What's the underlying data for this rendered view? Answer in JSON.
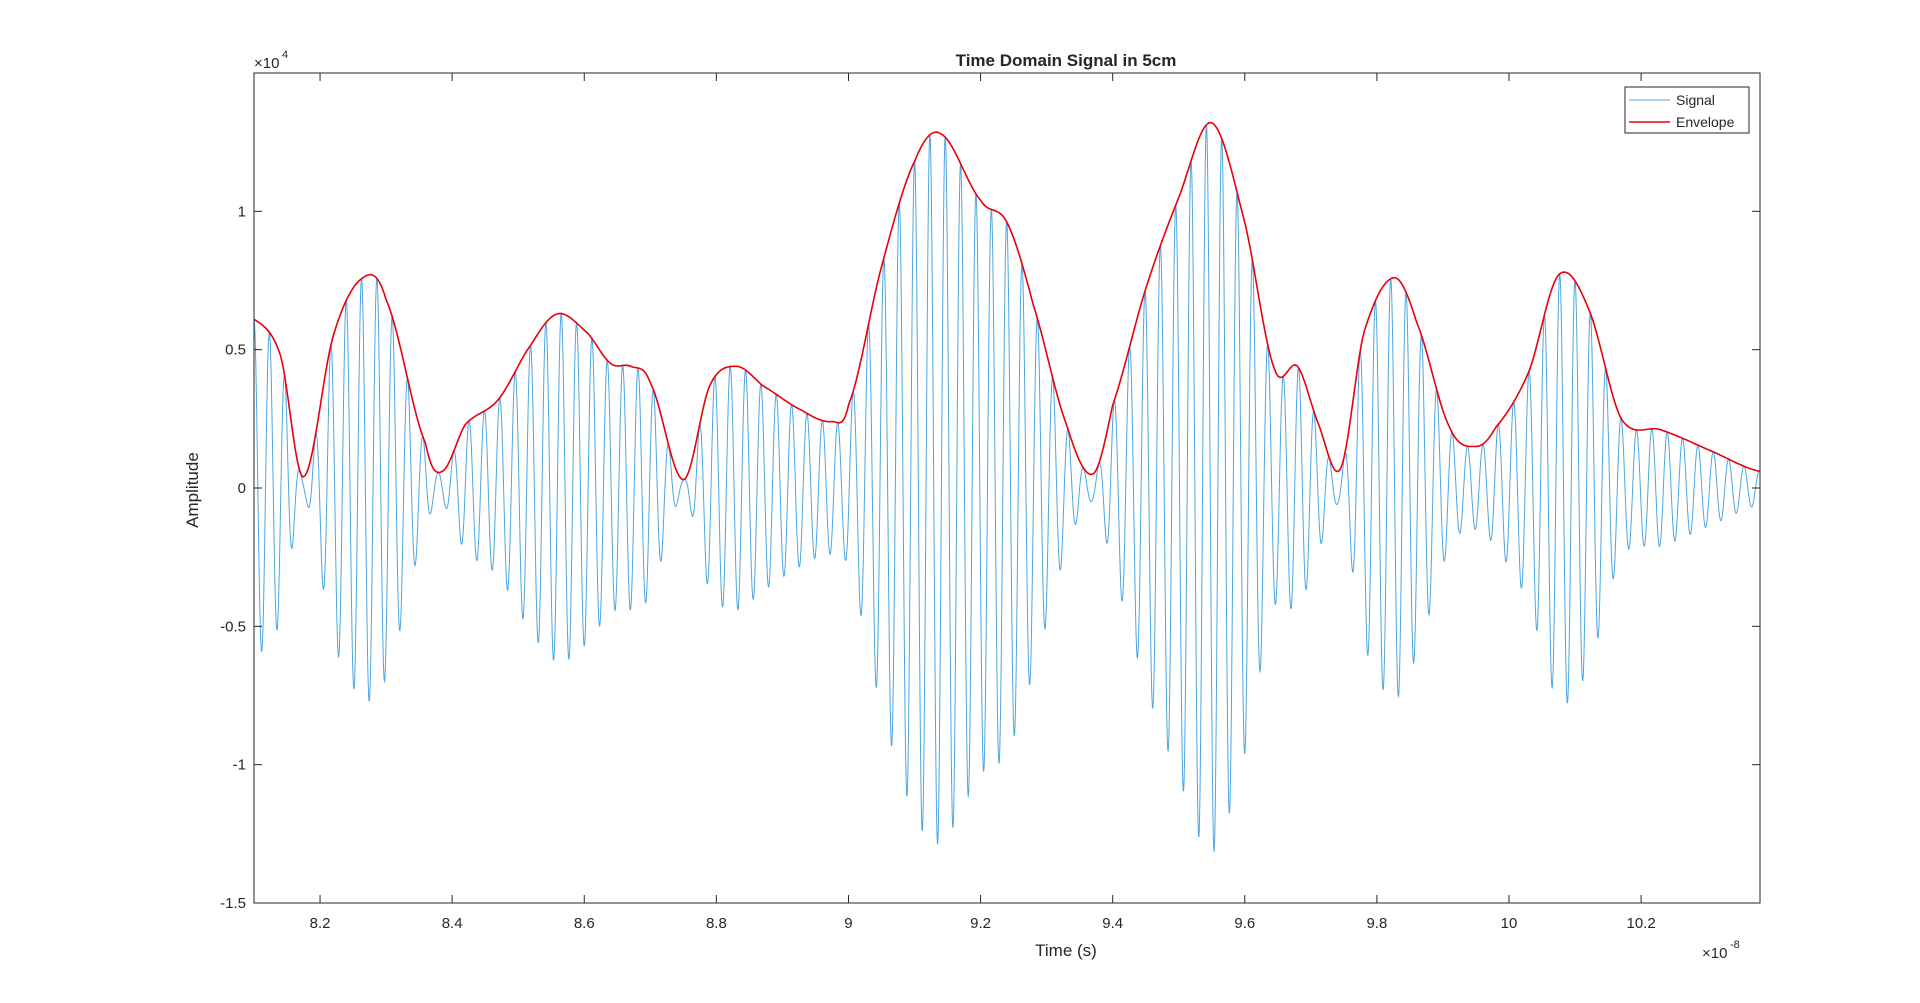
{
  "chart_data": {
    "type": "line",
    "title": "Time Domain Signal in 5cm",
    "xlabel": "Time (s)",
    "ylabel": "Amplitude",
    "x_exponent_label": "×10",
    "x_exponent_power": "-8",
    "y_exponent_label": "×10",
    "y_exponent_power": "4",
    "xlim": [
      8.1,
      10.38
    ],
    "ylim": [
      -1.5,
      1.5
    ],
    "x_ticks": [
      8.2,
      8.4,
      8.6,
      8.8,
      9,
      9.2,
      9.4,
      9.6,
      9.8,
      10,
      10.2
    ],
    "x_tick_labels": [
      "8.2",
      "8.4",
      "8.6",
      "8.8",
      "9",
      "9.2",
      "9.4",
      "9.6",
      "9.8",
      "10",
      "10.2"
    ],
    "y_ticks": [
      -1.5,
      -1,
      -0.5,
      0,
      0.5,
      1
    ],
    "y_tick_labels": [
      "-1.5",
      "-1",
      "-0.5",
      "0",
      "0.5",
      "1"
    ],
    "grid": false,
    "legend_position": "top-right",
    "carrier_cycles_per_unit": 43,
    "series": [
      {
        "name": "Signal",
        "color": "#4DA6E0",
        "style": "oscillating carrier modulated by envelope"
      },
      {
        "name": "Envelope",
        "color": "#E8000B",
        "x": [
          8.1,
          8.14,
          8.175,
          8.22,
          8.265,
          8.3,
          8.36,
          8.385,
          8.42,
          8.47,
          8.52,
          8.56,
          8.605,
          8.64,
          8.67,
          8.7,
          8.75,
          8.79,
          8.83,
          8.87,
          8.93,
          8.975,
          9.0,
          9.05,
          9.1,
          9.14,
          9.2,
          9.24,
          9.28,
          9.33,
          9.37,
          9.4,
          9.45,
          9.5,
          9.55,
          9.6,
          9.645,
          9.68,
          9.71,
          9.745,
          9.78,
          9.825,
          9.86,
          9.91,
          9.95,
          9.98,
          10.03,
          10.075,
          10.12,
          10.17,
          10.23,
          10.3,
          10.38
        ],
        "y": [
          0.61,
          0.48,
          0.04,
          0.55,
          0.76,
          0.68,
          0.16,
          0.06,
          0.23,
          0.32,
          0.52,
          0.63,
          0.56,
          0.45,
          0.44,
          0.38,
          0.03,
          0.37,
          0.44,
          0.37,
          0.28,
          0.24,
          0.3,
          0.8,
          1.18,
          1.28,
          1.04,
          0.96,
          0.66,
          0.23,
          0.05,
          0.3,
          0.72,
          1.05,
          1.32,
          0.96,
          0.43,
          0.44,
          0.24,
          0.07,
          0.56,
          0.76,
          0.6,
          0.22,
          0.15,
          0.22,
          0.42,
          0.77,
          0.65,
          0.25,
          0.21,
          0.14,
          0.06
        ]
      }
    ]
  }
}
